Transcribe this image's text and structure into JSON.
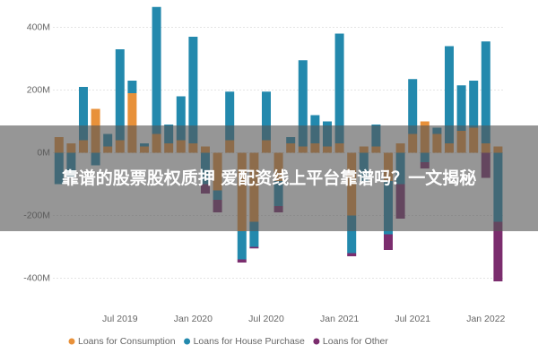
{
  "chart_data": {
    "type": "stacked_bar",
    "categories": [
      null,
      null,
      null,
      null,
      null,
      "Jul 2019",
      null,
      null,
      null,
      null,
      null,
      "Jan 2020",
      null,
      null,
      null,
      null,
      null,
      "Jul 2020",
      null,
      null,
      null,
      null,
      null,
      "Jan 2021",
      null,
      null,
      null,
      null,
      null,
      "Jul 2021",
      null,
      null,
      null,
      null,
      null,
      "Jan 2022",
      null
    ],
    "series": [
      {
        "name": "Loans for Consumption",
        "color": "#e8913a",
        "values": [
          50,
          30,
          40,
          140,
          20,
          40,
          190,
          20,
          60,
          30,
          40,
          30,
          20,
          -120,
          40,
          -250,
          -220,
          40,
          -90,
          30,
          20,
          30,
          20,
          30,
          -200,
          20,
          20,
          -90,
          30,
          60,
          100,
          60,
          30,
          70,
          80,
          30,
          20
        ]
      },
      {
        "name": "Loans for House Purchase",
        "color": "#2389ad",
        "values": [
          -100,
          -80,
          170,
          -40,
          40,
          290,
          40,
          10,
          405,
          60,
          140,
          340,
          -100,
          -30,
          155,
          -90,
          -80,
          155,
          -80,
          20,
          275,
          90,
          80,
          350,
          -120,
          -90,
          70,
          -170,
          -100,
          175,
          -30,
          20,
          310,
          145,
          150,
          325,
          -220
        ]
      },
      {
        "name": "Loans for Other",
        "color": "#7b2d6e",
        "values": [
          0,
          0,
          0,
          0,
          0,
          0,
          0,
          0,
          0,
          0,
          0,
          0,
          -30,
          -40,
          0,
          -10,
          -5,
          0,
          -20,
          0,
          0,
          0,
          0,
          0,
          -10,
          0,
          0,
          -50,
          -110,
          0,
          -20,
          0,
          0,
          0,
          0,
          -80,
          -190
        ]
      }
    ],
    "ylim": [
      -450,
      470
    ],
    "yticks": [
      {
        "value": -400,
        "label": "-400M"
      },
      {
        "value": -200,
        "label": "-200M"
      },
      {
        "value": 0,
        "label": "0M"
      },
      {
        "value": 200,
        "label": "200M"
      },
      {
        "value": 400,
        "label": "400M"
      }
    ],
    "grid": true
  },
  "overlay": {
    "title": "靠谱的股票股权质押 爱配资线上平台靠谱吗？一文揭秘"
  }
}
